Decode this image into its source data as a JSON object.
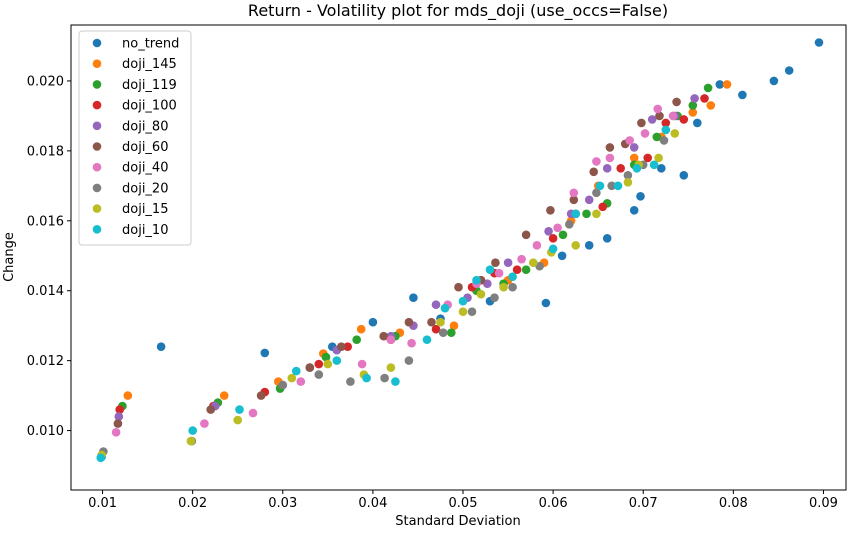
{
  "chart_data": {
    "type": "scatter",
    "title": "Return - Volatility plot for mds_doji (use_occs=False)",
    "xlabel": "Standard Deviation",
    "ylabel": "Change",
    "xlim": [
      0.0065,
      0.0925
    ],
    "ylim": [
      0.0083,
      0.0216
    ],
    "xticks": [
      "0.01",
      "0.02",
      "0.03",
      "0.04",
      "0.05",
      "0.06",
      "0.07",
      "0.08",
      "0.09"
    ],
    "xtick_values": [
      0.01,
      0.02,
      0.03,
      0.04,
      0.05,
      0.06,
      0.07,
      0.08,
      0.09
    ],
    "yticks": [
      "0.010",
      "0.012",
      "0.014",
      "0.016",
      "0.018",
      "0.020"
    ],
    "ytick_values": [
      0.01,
      0.012,
      0.014,
      0.016,
      0.018,
      0.02
    ],
    "grid": false,
    "legend_position": "top-left",
    "series": [
      {
        "name": "no_trend",
        "color": "#1f77b4",
        "points": [
          [
            0.0099,
            0.00925
          ],
          [
            0.0165,
            0.0124
          ],
          [
            0.028,
            0.01222
          ],
          [
            0.0355,
            0.0124
          ],
          [
            0.04,
            0.0131
          ],
          [
            0.0445,
            0.0138
          ],
          [
            0.0475,
            0.0132
          ],
          [
            0.053,
            0.0137
          ],
          [
            0.0592,
            0.01365
          ],
          [
            0.061,
            0.015
          ],
          [
            0.064,
            0.0153
          ],
          [
            0.066,
            0.0155
          ],
          [
            0.069,
            0.0163
          ],
          [
            0.0697,
            0.0167
          ],
          [
            0.072,
            0.0175
          ],
          [
            0.0745,
            0.0173
          ],
          [
            0.076,
            0.0188
          ],
          [
            0.0785,
            0.0199
          ],
          [
            0.081,
            0.0196
          ],
          [
            0.0845,
            0.02
          ],
          [
            0.0862,
            0.0203
          ],
          [
            0.0895,
            0.0211
          ]
        ]
      },
      {
        "name": "doji_145",
        "color": "#ff7f0e",
        "points": [
          [
            0.0128,
            0.011
          ],
          [
            0.0235,
            0.011
          ],
          [
            0.0295,
            0.0114
          ],
          [
            0.0345,
            0.0122
          ],
          [
            0.0387,
            0.0129
          ],
          [
            0.043,
            0.0128
          ],
          [
            0.049,
            0.013
          ],
          [
            0.052,
            0.0143
          ],
          [
            0.055,
            0.0143
          ],
          [
            0.059,
            0.0148
          ],
          [
            0.062,
            0.016
          ],
          [
            0.065,
            0.017
          ],
          [
            0.069,
            0.0178
          ],
          [
            0.072,
            0.0184
          ],
          [
            0.0755,
            0.0191
          ],
          [
            0.0775,
            0.0193
          ],
          [
            0.0793,
            0.0199
          ]
        ]
      },
      {
        "name": "doji_119",
        "color": "#2ca02c",
        "points": [
          [
            0.0122,
            0.0107
          ],
          [
            0.0228,
            0.0108
          ],
          [
            0.0297,
            0.0112
          ],
          [
            0.0348,
            0.0121
          ],
          [
            0.0382,
            0.0126
          ],
          [
            0.0425,
            0.0127
          ],
          [
            0.0487,
            0.0128
          ],
          [
            0.0515,
            0.014
          ],
          [
            0.0545,
            0.0142
          ],
          [
            0.057,
            0.0146
          ],
          [
            0.0611,
            0.0156
          ],
          [
            0.0637,
            0.0162
          ],
          [
            0.066,
            0.0165
          ],
          [
            0.069,
            0.0176
          ],
          [
            0.0715,
            0.0184
          ],
          [
            0.0738,
            0.019
          ],
          [
            0.0755,
            0.0193
          ],
          [
            0.0772,
            0.0198
          ]
        ]
      },
      {
        "name": "doji_100",
        "color": "#d62728",
        "points": [
          [
            0.0119,
            0.0106
          ],
          [
            0.0223,
            0.0107
          ],
          [
            0.028,
            0.0111
          ],
          [
            0.034,
            0.0119
          ],
          [
            0.0372,
            0.0124
          ],
          [
            0.042,
            0.0126
          ],
          [
            0.047,
            0.0129
          ],
          [
            0.051,
            0.0141
          ],
          [
            0.0535,
            0.0145
          ],
          [
            0.056,
            0.0146
          ],
          [
            0.06,
            0.0155
          ],
          [
            0.0625,
            0.0162
          ],
          [
            0.0655,
            0.0164
          ],
          [
            0.0675,
            0.0175
          ],
          [
            0.0705,
            0.0178
          ],
          [
            0.0725,
            0.0188
          ],
          [
            0.0745,
            0.0189
          ],
          [
            0.0768,
            0.0195
          ]
        ]
      },
      {
        "name": "doji_80",
        "color": "#9467bd",
        "points": [
          [
            0.0118,
            0.0104
          ],
          [
            0.0225,
            0.0107
          ],
          [
            0.033,
            0.0118
          ],
          [
            0.036,
            0.0123
          ],
          [
            0.042,
            0.0127
          ],
          [
            0.0445,
            0.013
          ],
          [
            0.047,
            0.0136
          ],
          [
            0.0505,
            0.0138
          ],
          [
            0.0527,
            0.0142
          ],
          [
            0.055,
            0.0148
          ],
          [
            0.0595,
            0.0157
          ],
          [
            0.062,
            0.0162
          ],
          [
            0.064,
            0.0166
          ],
          [
            0.066,
            0.0175
          ],
          [
            0.069,
            0.0181
          ],
          [
            0.071,
            0.0189
          ],
          [
            0.0735,
            0.019
          ],
          [
            0.0757,
            0.0195
          ]
        ]
      },
      {
        "name": "doji_60",
        "color": "#8c564b",
        "points": [
          [
            0.0117,
            0.0102
          ],
          [
            0.022,
            0.0106
          ],
          [
            0.0276,
            0.011
          ],
          [
            0.033,
            0.0118
          ],
          [
            0.0365,
            0.0124
          ],
          [
            0.0412,
            0.0127
          ],
          [
            0.044,
            0.0131
          ],
          [
            0.0465,
            0.0131
          ],
          [
            0.0495,
            0.0141
          ],
          [
            0.052,
            0.0143
          ],
          [
            0.0536,
            0.0148
          ],
          [
            0.057,
            0.0156
          ],
          [
            0.0597,
            0.0163
          ],
          [
            0.0623,
            0.0166
          ],
          [
            0.0645,
            0.0174
          ],
          [
            0.0663,
            0.0181
          ],
          [
            0.068,
            0.0182
          ],
          [
            0.0698,
            0.0188
          ],
          [
            0.0718,
            0.019
          ],
          [
            0.0737,
            0.0194
          ]
        ]
      },
      {
        "name": "doji_40",
        "color": "#e377c2",
        "points": [
          [
            0.0115,
            0.00995
          ],
          [
            0.0213,
            0.0102
          ],
          [
            0.0267,
            0.0105
          ],
          [
            0.032,
            0.0114
          ],
          [
            0.0388,
            0.0119
          ],
          [
            0.042,
            0.0126
          ],
          [
            0.0443,
            0.0125
          ],
          [
            0.0483,
            0.0136
          ],
          [
            0.0515,
            0.0142
          ],
          [
            0.054,
            0.0145
          ],
          [
            0.0565,
            0.0149
          ],
          [
            0.0582,
            0.0153
          ],
          [
            0.0605,
            0.0158
          ],
          [
            0.0623,
            0.0168
          ],
          [
            0.0648,
            0.0177
          ],
          [
            0.0663,
            0.0178
          ],
          [
            0.0685,
            0.0183
          ],
          [
            0.0702,
            0.0185
          ],
          [
            0.0716,
            0.0192
          ],
          [
            0.0733,
            0.019
          ]
        ]
      },
      {
        "name": "doji_20",
        "color": "#7f7f7f",
        "points": [
          [
            0.0101,
            0.0094
          ],
          [
            0.0199,
            0.0097
          ],
          [
            0.03,
            0.0113
          ],
          [
            0.034,
            0.0116
          ],
          [
            0.0375,
            0.0114
          ],
          [
            0.0413,
            0.0115
          ],
          [
            0.044,
            0.012
          ],
          [
            0.0478,
            0.0128
          ],
          [
            0.051,
            0.0134
          ],
          [
            0.0535,
            0.0138
          ],
          [
            0.0555,
            0.0141
          ],
          [
            0.0585,
            0.0147
          ],
          [
            0.0618,
            0.0159
          ],
          [
            0.0648,
            0.0168
          ],
          [
            0.0665,
            0.017
          ],
          [
            0.0683,
            0.0173
          ],
          [
            0.07,
            0.0176
          ],
          [
            0.0723,
            0.0183
          ]
        ]
      },
      {
        "name": "doji_15",
        "color": "#bcbd22",
        "points": [
          [
            0.0099,
            0.0093
          ],
          [
            0.0198,
            0.0097
          ],
          [
            0.025,
            0.0103
          ],
          [
            0.031,
            0.0115
          ],
          [
            0.035,
            0.0119
          ],
          [
            0.039,
            0.0116
          ],
          [
            0.042,
            0.0118
          ],
          [
            0.0475,
            0.0131
          ],
          [
            0.05,
            0.0134
          ],
          [
            0.052,
            0.0139
          ],
          [
            0.0545,
            0.0141
          ],
          [
            0.0578,
            0.0148
          ],
          [
            0.0598,
            0.0151
          ],
          [
            0.0625,
            0.0153
          ],
          [
            0.0648,
            0.0162
          ],
          [
            0.0683,
            0.0171
          ],
          [
            0.0695,
            0.0176
          ],
          [
            0.0717,
            0.0178
          ],
          [
            0.0735,
            0.0185
          ]
        ]
      },
      {
        "name": "doji_10",
        "color": "#17becf",
        "points": [
          [
            0.0098,
            0.00922
          ],
          [
            0.02,
            0.01
          ],
          [
            0.0252,
            0.0106
          ],
          [
            0.0315,
            0.0117
          ],
          [
            0.036,
            0.012
          ],
          [
            0.0393,
            0.0115
          ],
          [
            0.0425,
            0.0114
          ],
          [
            0.046,
            0.0126
          ],
          [
            0.048,
            0.0135
          ],
          [
            0.05,
            0.0137
          ],
          [
            0.0515,
            0.0143
          ],
          [
            0.053,
            0.0146
          ],
          [
            0.0555,
            0.0144
          ],
          [
            0.06,
            0.0152
          ],
          [
            0.0625,
            0.0162
          ],
          [
            0.0652,
            0.017
          ],
          [
            0.0672,
            0.017
          ],
          [
            0.0693,
            0.0175
          ],
          [
            0.0712,
            0.0176
          ],
          [
            0.0725,
            0.0186
          ]
        ]
      }
    ]
  }
}
